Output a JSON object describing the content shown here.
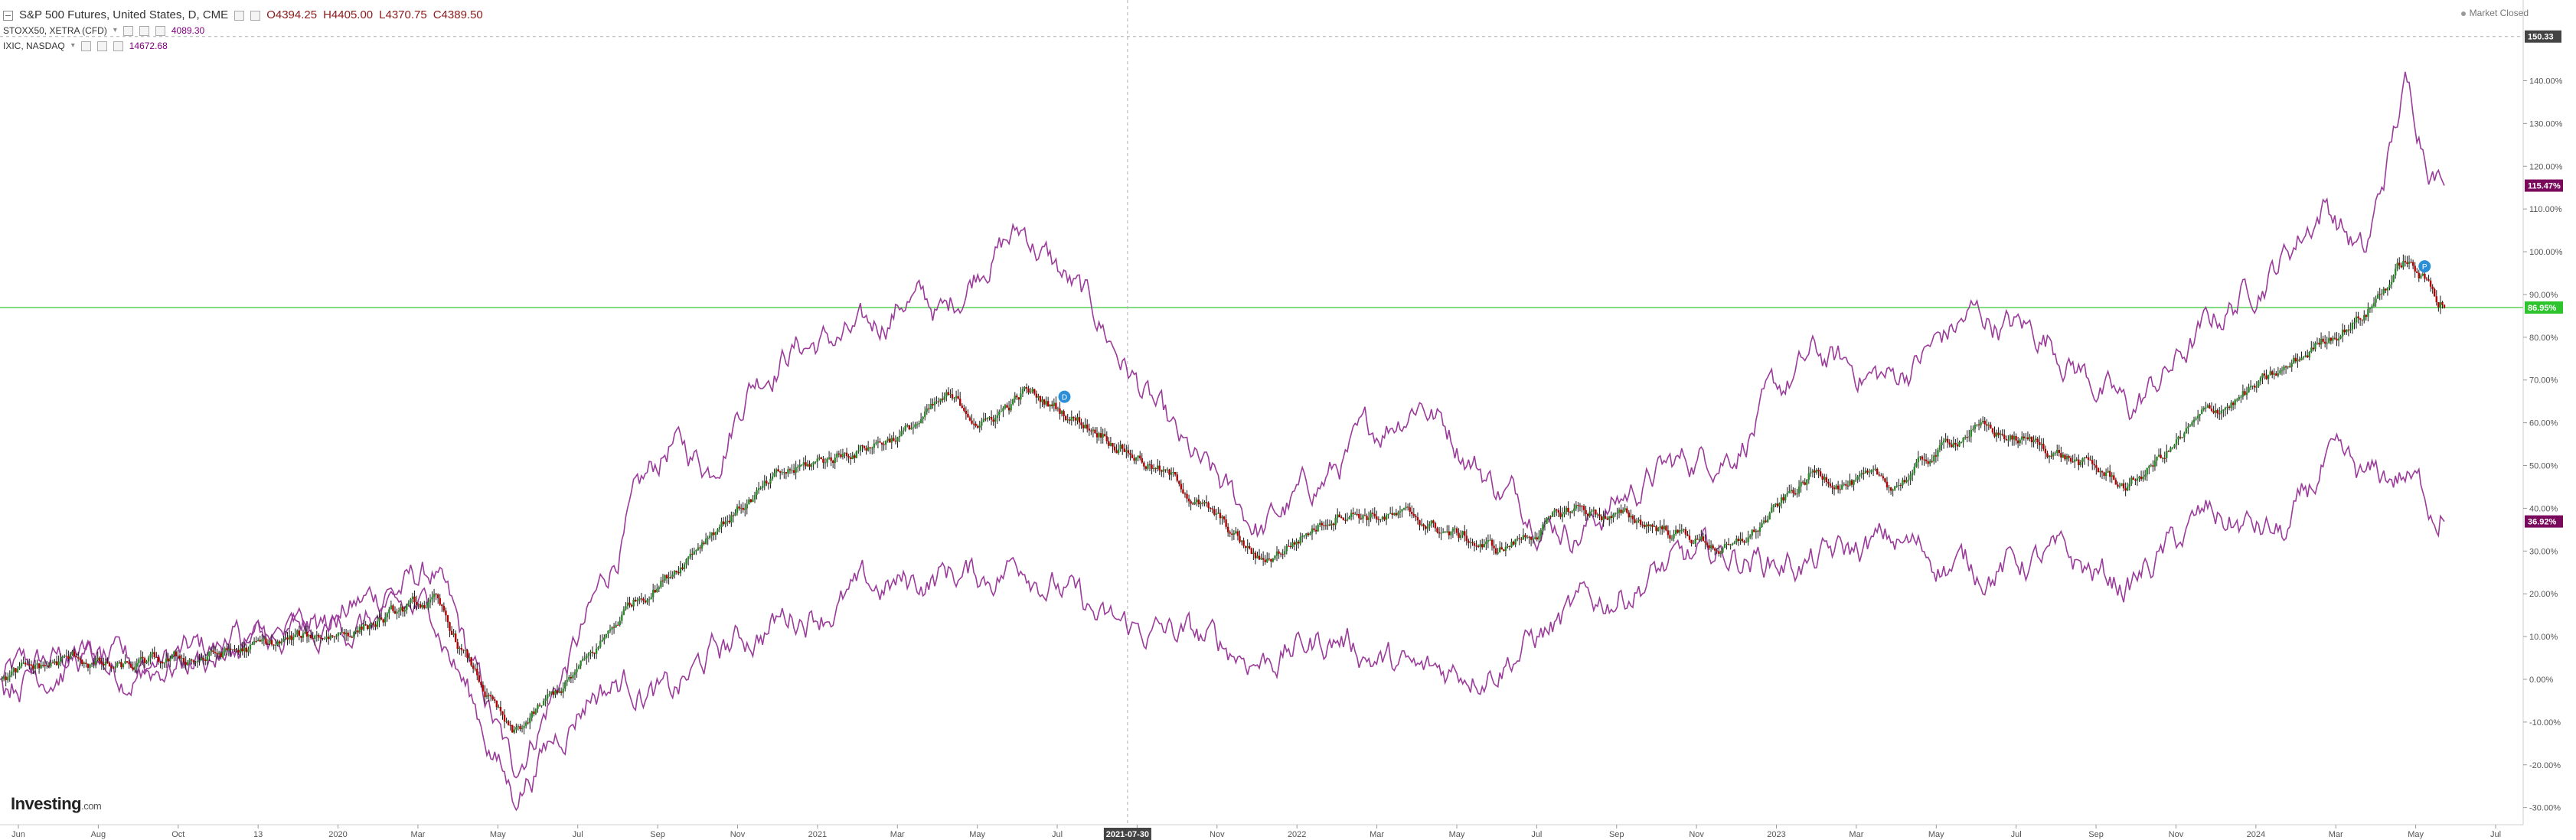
{
  "legend": {
    "main": {
      "title": "S&P 500 Futures, United States, D, CME",
      "open": "O4394.25",
      "high": "H4405.00",
      "low": "L4370.75",
      "close": "C4389.50"
    },
    "compare1": {
      "title": "STOXX50, XETRA (CFD)",
      "value": "4089.30"
    },
    "compare2": {
      "title": "IXIC, NASDAQ",
      "value": "14672.68"
    }
  },
  "status": {
    "market": "Market Closed"
  },
  "logo": {
    "brand": "Investing",
    "suffix": ".com"
  },
  "crosshair": {
    "x_label": "2021-07-30",
    "y_label": "150.33"
  },
  "colors": {
    "up": "#2a8a2a",
    "down": "#b30000",
    "compare": "#9b3c9b",
    "hline": "#59d159",
    "crosshair": "#b0b0b0"
  },
  "chart_data": {
    "type": "line",
    "title": "S&P 500 Futures, United States, D, CME",
    "y_unit": "% change",
    "ylim": [
      -34,
      151
    ],
    "y_ticks": [
      140,
      130,
      120,
      110,
      100,
      90,
      80,
      70,
      60,
      50,
      40,
      30,
      20,
      10,
      0,
      -10,
      -20,
      -30
    ],
    "x_ticks": [
      "Jun",
      "Aug",
      "Oct",
      "13",
      "2020",
      "Mar",
      "May",
      "Jul",
      "Sep",
      "Nov",
      "2021",
      "Mar",
      "May",
      "Jul",
      "Sep",
      "Nov",
      "2022",
      "Mar",
      "May",
      "Jul",
      "Sep",
      "Nov",
      "2023",
      "Mar",
      "May",
      "Jul",
      "Sep",
      "Nov",
      "2024",
      "Mar",
      "May",
      "Jul"
    ],
    "x_range": [
      "2019-06",
      "2024-08"
    ],
    "grid": false,
    "last_value_tags": [
      {
        "series": "IXIC, NASDAQ",
        "value": "115.47%",
        "color": "#7a0a5c"
      },
      {
        "series": "S&P 500 Futures, United States, D, CME",
        "value": "86.95%",
        "color": "#2ec42e"
      },
      {
        "series": "STOXX50, XETRA (CFD)",
        "value": "36.92%",
        "color": "#7a0a5c"
      }
    ],
    "horizontal_line": 86.95,
    "markers": [
      {
        "label": "D",
        "t": 27
      },
      {
        "label": "P",
        "t": 61.5
      }
    ],
    "series": [
      {
        "name": "S&P 500 Futures, United States, D, CME",
        "style": "candlestick",
        "t": [
          0,
          2,
          3,
          5,
          7,
          9,
          11,
          13,
          15,
          16,
          17,
          18,
          19,
          20,
          22,
          23,
          24,
          25,
          26,
          28,
          30,
          32,
          34,
          36,
          38,
          40,
          42,
          44,
          46,
          48,
          50,
          52,
          54,
          56,
          58,
          59,
          60,
          61,
          61.6,
          62
        ],
        "values": [
          0,
          5,
          2,
          5,
          8,
          12,
          18,
          -14,
          5,
          18,
          25,
          35,
          42,
          48,
          55,
          58,
          65,
          60,
          67,
          58,
          45,
          27,
          40,
          37,
          30,
          40,
          36,
          30,
          48,
          45,
          59,
          54,
          45,
          62,
          72,
          80,
          86,
          98,
          92,
          86.95
        ]
      },
      {
        "name": "IXIC, NASDAQ",
        "style": "line",
        "t": [
          0,
          2,
          3,
          5,
          7,
          9,
          11,
          13,
          15,
          16,
          17,
          18,
          19,
          20,
          22,
          23,
          24,
          25,
          26,
          28,
          30,
          32,
          34,
          36,
          38,
          40,
          42,
          44,
          46,
          48,
          50,
          52,
          54,
          56,
          58,
          59,
          60,
          61,
          61.6,
          62
        ],
        "values": [
          0,
          6,
          2,
          6,
          10,
          17,
          25,
          -22,
          15,
          38,
          55,
          50,
          70,
          78,
          80,
          90,
          85,
          100,
          105,
          82,
          52,
          35,
          50,
          67,
          45,
          35,
          48,
          55,
          75,
          70,
          85,
          80,
          62,
          82,
          100,
          112,
          98,
          138,
          124,
          115.47
        ]
      },
      {
        "name": "STOXX50, XETRA (CFD)",
        "style": "line",
        "t": [
          0,
          2,
          3,
          5,
          7,
          9,
          11,
          13,
          15,
          16,
          17,
          18,
          19,
          20,
          22,
          23,
          24,
          25,
          26,
          28,
          30,
          32,
          34,
          36,
          38,
          40,
          42,
          44,
          46,
          48,
          50,
          52,
          54,
          56,
          58,
          59,
          60,
          61,
          61.6,
          62
        ],
        "values": [
          0,
          5,
          2,
          5,
          9,
          13,
          16,
          -27,
          -2,
          0,
          -5,
          5,
          10,
          15,
          20,
          22,
          25,
          24,
          29,
          12,
          10,
          5,
          10,
          0,
          5,
          15,
          25,
          29,
          27,
          32,
          26,
          28,
          22,
          38,
          33,
          50,
          45,
          48,
          42,
          36.92
        ]
      }
    ]
  }
}
